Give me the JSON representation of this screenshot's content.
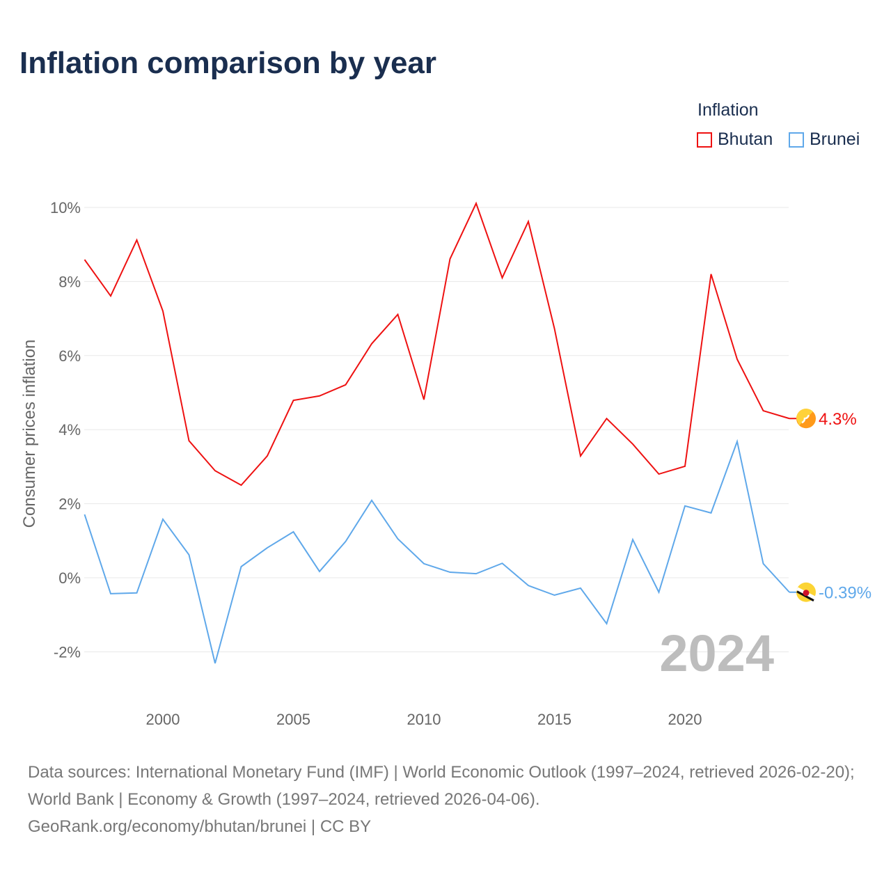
{
  "chart_data": {
    "type": "line",
    "title": "Inflation comparison by year",
    "ylabel": "Consumer prices inflation",
    "xlabel": "",
    "ylim": [
      -3.3,
      10.6
    ],
    "xlim": [
      1997,
      2024
    ],
    "yticks": [
      -2,
      0,
      2,
      4,
      6,
      8,
      10
    ],
    "ytick_labels": [
      "-2%",
      "0%",
      "2%",
      "4%",
      "6%",
      "8%",
      "10%"
    ],
    "xticks": [
      2000,
      2005,
      2010,
      2015,
      2020
    ],
    "xtick_labels": [
      "2000",
      "2005",
      "2010",
      "2015",
      "2020"
    ],
    "grid": true,
    "legend": {
      "title": "Inflation",
      "placement": "top-right"
    },
    "watermark_year": "2024",
    "x": [
      1997,
      1998,
      1999,
      2000,
      2001,
      2002,
      2003,
      2004,
      2005,
      2006,
      2007,
      2008,
      2009,
      2010,
      2011,
      2012,
      2013,
      2014,
      2015,
      2016,
      2017,
      2018,
      2019,
      2020,
      2021,
      2022,
      2023,
      2024
    ],
    "series": [
      {
        "name": "Bhutan",
        "color": "#ee1111",
        "end_label": "4.3%",
        "flag_icon": "bhutan-flag-icon",
        "values": [
          8.59,
          7.61,
          9.12,
          7.2,
          3.7,
          2.89,
          2.5,
          3.29,
          4.79,
          4.91,
          5.21,
          6.32,
          7.11,
          4.81,
          8.61,
          10.11,
          8.1,
          9.62,
          6.73,
          3.29,
          4.3,
          3.61,
          2.8,
          3.01,
          8.2,
          5.9,
          4.51,
          4.3
        ]
      },
      {
        "name": "Brunei",
        "color": "#5fa8ea",
        "end_label": "-0.39%",
        "flag_icon": "brunei-flag-icon",
        "values": [
          1.71,
          -0.43,
          -0.41,
          1.58,
          0.62,
          -2.31,
          0.3,
          0.81,
          1.24,
          0.17,
          0.98,
          2.09,
          1.05,
          0.38,
          0.15,
          0.11,
          0.39,
          -0.21,
          -0.47,
          -0.28,
          -1.24,
          1.03,
          -0.39,
          1.94,
          1.75,
          3.68,
          0.38,
          -0.39
        ]
      }
    ]
  },
  "footer": {
    "sources": "Data sources: International Monetary Fund (IMF) | World Economic Outlook (1997–2024, retrieved 2026-02-20); World Bank | Economy & Growth (1997–2024, retrieved 2026-04-06).",
    "attribution": "GeoRank.org/economy/bhutan/brunei | CC BY"
  }
}
